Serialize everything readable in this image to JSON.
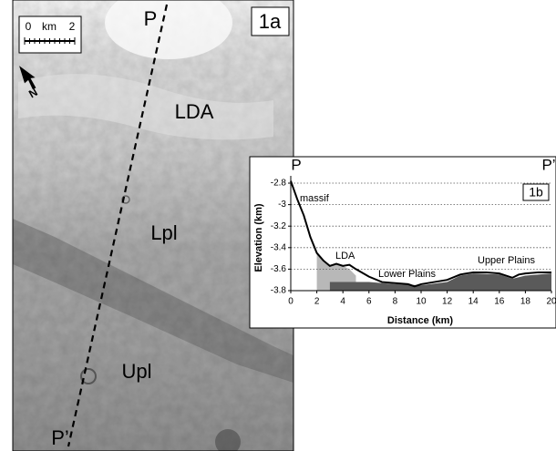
{
  "image": {
    "panel_label": "1a",
    "profile_start": "P",
    "profile_end": "P’",
    "units": [
      "LDA",
      "Lpl",
      "Upl"
    ],
    "scale": {
      "start": "0",
      "unit": "km",
      "end": "2"
    },
    "north": "N"
  },
  "chart_data": {
    "type": "line",
    "panel_label": "1b",
    "start_label": "P",
    "end_label": "P’",
    "xlabel": "Distance (km)",
    "ylabel": "Elevation (km)",
    "annotations": [
      "massif",
      "LDA",
      "Lower Plains",
      "Upper Plains"
    ],
    "x": [
      0,
      0.5,
      1,
      1.5,
      2,
      2.5,
      3,
      3.5,
      4,
      4.5,
      5,
      6,
      7,
      8,
      9,
      9.5,
      10,
      11,
      12,
      13,
      14,
      15,
      16,
      17,
      17.5,
      18,
      19,
      20
    ],
    "values": [
      -2.78,
      -2.95,
      -3.1,
      -3.3,
      -3.45,
      -3.52,
      -3.57,
      -3.55,
      -3.57,
      -3.56,
      -3.6,
      -3.67,
      -3.72,
      -3.73,
      -3.74,
      -3.76,
      -3.74,
      -3.72,
      -3.7,
      -3.65,
      -3.63,
      -3.63,
      -3.64,
      -3.68,
      -3.65,
      -3.64,
      -3.63,
      -3.63
    ],
    "color": "#000000",
    "areas": [
      {
        "color": "#b8b8b8",
        "x": [
          2,
          2.5,
          3,
          3.5,
          4,
          4.5,
          5
        ],
        "values": [
          -3.45,
          -3.52,
          -3.57,
          -3.55,
          -3.57,
          -3.6,
          -3.66
        ]
      },
      {
        "color": "#5a5a5a",
        "x": [
          3,
          4,
          6,
          8,
          10,
          12,
          13,
          14,
          16,
          17,
          18,
          20
        ],
        "values": [
          -3.72,
          -3.72,
          -3.72,
          -3.74,
          -3.75,
          -3.72,
          -3.66,
          -3.64,
          -3.65,
          -3.69,
          -3.66,
          -3.64
        ]
      }
    ],
    "xlim": [
      0,
      20
    ],
    "xticks": [
      0,
      2,
      4,
      6,
      8,
      10,
      12,
      14,
      16,
      18,
      20
    ],
    "ylim": [
      -3.8,
      -2.8
    ],
    "yticks": [
      -2.8,
      -3,
      -3.2,
      -3.4,
      -3.6,
      -3.8
    ],
    "grid": true
  }
}
